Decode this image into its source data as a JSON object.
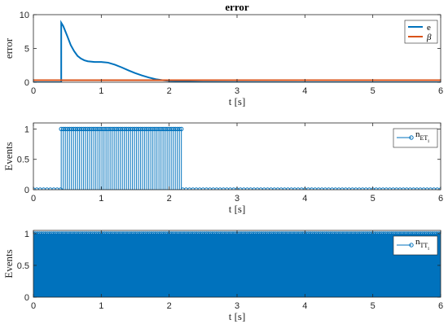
{
  "colors": {
    "blue": "#0072BD",
    "orange": "#D95319"
  },
  "chart_data": [
    {
      "type": "line",
      "title": "error",
      "xlabel": "t [s]",
      "ylabel": "error",
      "xlim": [
        0,
        6
      ],
      "ylim": [
        0,
        10
      ],
      "xticks": [
        0,
        1,
        2,
        3,
        4,
        5,
        6
      ],
      "yticks": [
        0,
        5,
        10
      ],
      "legend_placement": "top-right",
      "series": [
        {
          "name": "e",
          "color": "#0072BD",
          "x": [
            0,
            0.41,
            0.41,
            0.44,
            0.5,
            0.55,
            0.6,
            0.65,
            0.7,
            0.75,
            0.8,
            0.9,
            1.0,
            1.1,
            1.2,
            1.3,
            1.4,
            1.5,
            1.6,
            1.7,
            1.8,
            1.9,
            2.0,
            2.1,
            2.2,
            2.5,
            3.0,
            4.0,
            5.0,
            6.0
          ],
          "y": [
            0,
            0,
            8.8,
            8.3,
            6.8,
            5.5,
            4.6,
            3.9,
            3.5,
            3.25,
            3.1,
            3.0,
            3.0,
            2.9,
            2.6,
            2.2,
            1.75,
            1.35,
            1.0,
            0.7,
            0.45,
            0.3,
            0.2,
            0.12,
            0.08,
            0.03,
            0.01,
            0.0,
            0.0,
            0.0
          ]
        },
        {
          "name": "β",
          "color": "#D95319",
          "x": [
            0,
            6
          ],
          "y": [
            0.3,
            0.3
          ]
        }
      ]
    },
    {
      "type": "stem",
      "xlabel": "t [s]",
      "ylabel": "Events",
      "xlim": [
        0,
        6
      ],
      "ylim": [
        0,
        1.1
      ],
      "xticks": [
        0,
        1,
        2,
        3,
        4,
        5,
        6
      ],
      "yticks": [
        0,
        0.5,
        1
      ],
      "legend_placement": "top-right",
      "series": [
        {
          "name": "n_ET_i",
          "color": "#0072BD",
          "event_interval": [
            0.41,
            2.18
          ],
          "event_period": 0.03,
          "zero_marker_period": 0.05
        }
      ]
    },
    {
      "type": "stem",
      "xlabel": "t [s]",
      "ylabel": "Events",
      "xlim": [
        0,
        6
      ],
      "ylim": [
        0,
        1.05
      ],
      "xticks": [
        0,
        1,
        2,
        3,
        4,
        5,
        6
      ],
      "yticks": [
        0,
        0.5,
        1
      ],
      "legend_placement": "top-right",
      "series": [
        {
          "name": "n_TT_i",
          "color": "#0072BD",
          "event_interval": [
            0,
            6
          ],
          "event_period": 0.01
        }
      ]
    }
  ]
}
